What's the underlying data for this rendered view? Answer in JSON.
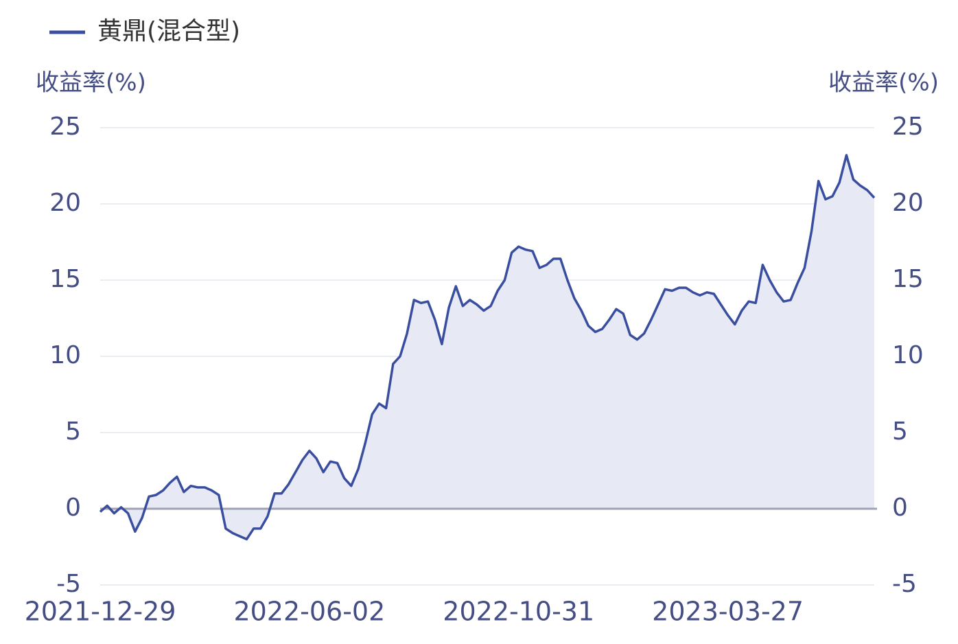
{
  "chart_data": {
    "type": "line",
    "ylabel": "收益率(%)",
    "y2label": "收益率(%)",
    "ylim": [
      -5,
      25
    ],
    "yticks": [
      -5,
      0,
      5,
      10,
      15,
      20,
      25
    ],
    "y2lim": [
      -5,
      25
    ],
    "y2ticks": [
      -5,
      0,
      5,
      10,
      15,
      20,
      25
    ],
    "grid": true,
    "legend": "upper left",
    "categories": [
      "2021-12-29",
      null,
      null,
      null,
      null,
      null,
      null,
      null,
      null,
      null,
      null,
      null,
      null,
      null,
      null,
      null,
      null,
      null,
      null,
      null,
      null,
      null,
      null,
      null,
      null,
      null,
      null,
      null,
      null,
      null,
      "2022-06-02",
      null,
      null,
      null,
      null,
      null,
      null,
      null,
      null,
      null,
      null,
      null,
      null,
      null,
      null,
      null,
      null,
      null,
      null,
      null,
      null,
      null,
      null,
      null,
      null,
      null,
      null,
      null,
      null,
      null,
      "2022-10-31",
      null,
      null,
      null,
      null,
      null,
      null,
      null,
      null,
      null,
      null,
      null,
      null,
      null,
      null,
      null,
      null,
      null,
      null,
      null,
      null,
      null,
      null,
      null,
      null,
      null,
      null,
      null,
      null,
      null,
      "2023-03-27",
      null,
      null,
      null,
      null,
      null,
      null,
      null,
      null,
      null,
      null,
      null,
      null,
      null,
      null,
      null,
      null,
      null,
      null,
      null,
      null,
      null
    ],
    "series": [
      {
        "name": "黄鼎(混合型)",
        "color": "#3a4ea0",
        "fill": "#e7e9f4",
        "values": [
          -0.2,
          0.2,
          -0.3,
          0.1,
          -0.3,
          -1.5,
          -0.6,
          0.8,
          0.9,
          1.2,
          1.7,
          2.1,
          1.1,
          1.5,
          1.4,
          1.4,
          1.2,
          0.9,
          -1.3,
          -1.6,
          -1.8,
          -2.0,
          -1.3,
          -1.3,
          -0.5,
          1.0,
          1.0,
          1.6,
          2.4,
          3.2,
          3.8,
          3.3,
          2.4,
          3.1,
          3.0,
          2.0,
          1.5,
          2.6,
          4.3,
          6.2,
          6.9,
          6.6,
          9.5,
          10.0,
          11.5,
          13.7,
          13.5,
          13.6,
          12.4,
          10.8,
          13.2,
          14.6,
          13.3,
          13.7,
          13.4,
          13.0,
          13.3,
          14.3,
          15.0,
          16.8,
          17.2,
          17.0,
          16.9,
          15.8,
          16.0,
          16.4,
          16.4,
          15.0,
          13.8,
          13.0,
          12.0,
          11.6,
          11.8,
          12.4,
          13.1,
          12.8,
          11.4,
          11.1,
          11.5,
          12.4,
          13.4,
          14.4,
          14.3,
          14.5,
          14.5,
          14.2,
          14.0,
          14.2,
          14.1,
          13.4,
          12.7,
          12.1,
          13.0,
          13.6,
          13.5,
          16.0,
          15.0,
          14.2,
          13.6,
          13.7,
          14.8,
          15.8,
          18.2,
          21.5,
          20.3,
          20.5,
          21.4,
          23.2,
          21.6,
          21.2,
          20.9,
          20.4
        ]
      }
    ]
  }
}
